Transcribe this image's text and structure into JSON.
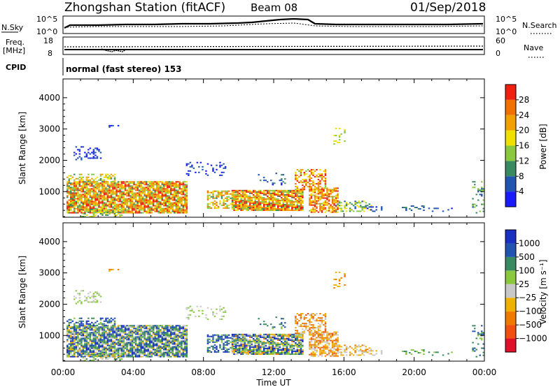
{
  "header": {
    "station": "Zhongshan Station (fitACF)",
    "beam": "Beam 08",
    "date": "01/Sep/2018"
  },
  "nsky": {
    "label": "N.Sky",
    "ticks": [
      "10^5",
      "10^0"
    ],
    "right_label": "N.Search",
    "right_ticks": [
      "10^5",
      "10^0"
    ]
  },
  "freq": {
    "label_top": "Freq.",
    "label_unit": "[MHz]",
    "ticks": [
      "18",
      "8"
    ],
    "right_label": "Nave",
    "right_ticks": [
      "60",
      "0"
    ]
  },
  "cpid": {
    "label": "CPID",
    "value": "normal (fast stereo) 153"
  },
  "colors": {
    "power": [
      "#1a1aff",
      "#2255b0",
      "#3a8a60",
      "#8ac840",
      "#f0e000",
      "#f0a000",
      "#f07000",
      "#f02010"
    ],
    "velocity": [
      "#e0102a",
      "#f05010",
      "#f07a00",
      "#f0b000",
      "#c8c8c8",
      "#8ac840",
      "#3a8a60",
      "#2255b0",
      "#1a30c0"
    ]
  },
  "chart_data": [
    {
      "type": "heatmap",
      "name": "power",
      "ylabel": "Slant Range [km]",
      "yticks": [
        "4000",
        "3000",
        "2000",
        "1000"
      ],
      "xticks": [
        "00:00",
        "04:00",
        "08:00",
        "12:00",
        "16:00",
        "20:00",
        "00:00"
      ],
      "colorbar_label": "Power [dB]",
      "colorbar_ticks": [
        "28",
        "24",
        "20",
        "16",
        "12",
        "8",
        "4"
      ],
      "ylim": [
        180,
        4600
      ],
      "x_range_hours": [
        0,
        24
      ]
    },
    {
      "type": "heatmap",
      "name": "velocity",
      "ylabel": "Slant Range [km]",
      "yticks": [
        "4000",
        "3000",
        "2000",
        "1000"
      ],
      "xticks": [
        "00:00",
        "04:00",
        "08:00",
        "12:00",
        "16:00",
        "20:00",
        "00:00"
      ],
      "xlabel": "Time UT",
      "colorbar_label": "Velocity [m s⁻¹]",
      "colorbar_ticks": [
        "1000",
        "500",
        "100",
        "25",
        "−25",
        "−100",
        "−500",
        "−1000"
      ],
      "ylim": [
        180,
        4600
      ],
      "x_range_hours": [
        0,
        24
      ]
    }
  ]
}
